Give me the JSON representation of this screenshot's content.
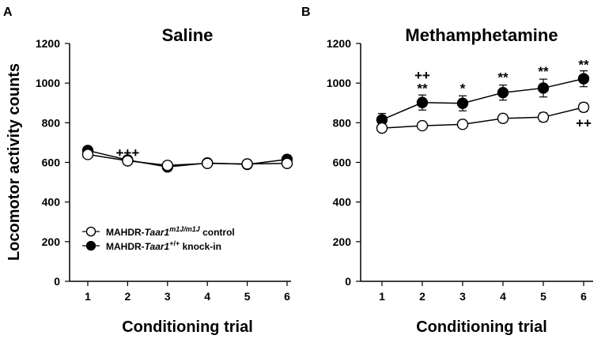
{
  "chart_data": [
    {
      "panel_label": "A",
      "type": "line",
      "title": "Saline",
      "xlabel": "Conditioning trial",
      "ylabel": "Locomotor activity counts",
      "categories": [
        "1",
        "2",
        "3",
        "4",
        "5",
        "6"
      ],
      "ylim": [
        0,
        1200
      ],
      "yticks": [
        "0",
        "200",
        "400",
        "600",
        "800",
        "1000",
        "1200"
      ],
      "series": [
        {
          "name": "MAHDR-Taar1 m1J/m1J control",
          "marker": "open-circle",
          "values": [
            640,
            608,
            585,
            595,
            592,
            595
          ],
          "err": [
            12,
            10,
            15,
            14,
            15,
            14
          ]
        },
        {
          "name": "MAHDR-Taar1 +/+ knock-in",
          "marker": "filled-circle",
          "values": [
            660,
            612,
            577,
            597,
            590,
            615
          ],
          "err": [
            12,
            10,
            18,
            18,
            18,
            20
          ]
        }
      ],
      "annotations": [
        {
          "category": "2",
          "text": "+++",
          "value": 650
        }
      ],
      "legend": {
        "position": "lower-left",
        "entries": [
          {
            "marker": "open-circle",
            "prefix": "MAHDR-",
            "italic": "Taar1",
            "sup": "m1J/m1J",
            "suffix": " control"
          },
          {
            "marker": "filled-circle",
            "prefix": "MAHDR-",
            "italic": "Taar1",
            "sup": "+/+",
            "suffix": " knock-in"
          }
        ]
      }
    },
    {
      "panel_label": "B",
      "type": "line",
      "title": "Methamphetamine",
      "xlabel": "Conditioning trial",
      "ylabel": "",
      "categories": [
        "1",
        "2",
        "3",
        "4",
        "5",
        "6"
      ],
      "ylim": [
        0,
        1200
      ],
      "yticks": [
        "0",
        "200",
        "400",
        "600",
        "800",
        "1000",
        "1200"
      ],
      "series": [
        {
          "name": "MAHDR-Taar1 m1J/m1J control",
          "marker": "open-circle",
          "values": [
            773,
            785,
            792,
            822,
            828,
            878
          ],
          "err": [
            18,
            16,
            18,
            18,
            22,
            22
          ]
        },
        {
          "name": "MAHDR-Taar1 +/+ knock-in",
          "marker": "filled-circle",
          "values": [
            815,
            902,
            898,
            952,
            975,
            1022
          ],
          "err": [
            32,
            38,
            38,
            38,
            45,
            40
          ]
        }
      ],
      "annotations": [
        {
          "category": "2",
          "text": "++",
          "value": 1040
        },
        {
          "category": "2",
          "text": "**",
          "value": 975
        },
        {
          "category": "3",
          "text": "*",
          "value": 975
        },
        {
          "category": "4",
          "text": "**",
          "value": 1030
        },
        {
          "category": "5",
          "text": "**",
          "value": 1060
        },
        {
          "category": "6",
          "text": "**",
          "value": 1095
        },
        {
          "category": "6",
          "text": "++",
          "value": 800
        }
      ]
    }
  ]
}
